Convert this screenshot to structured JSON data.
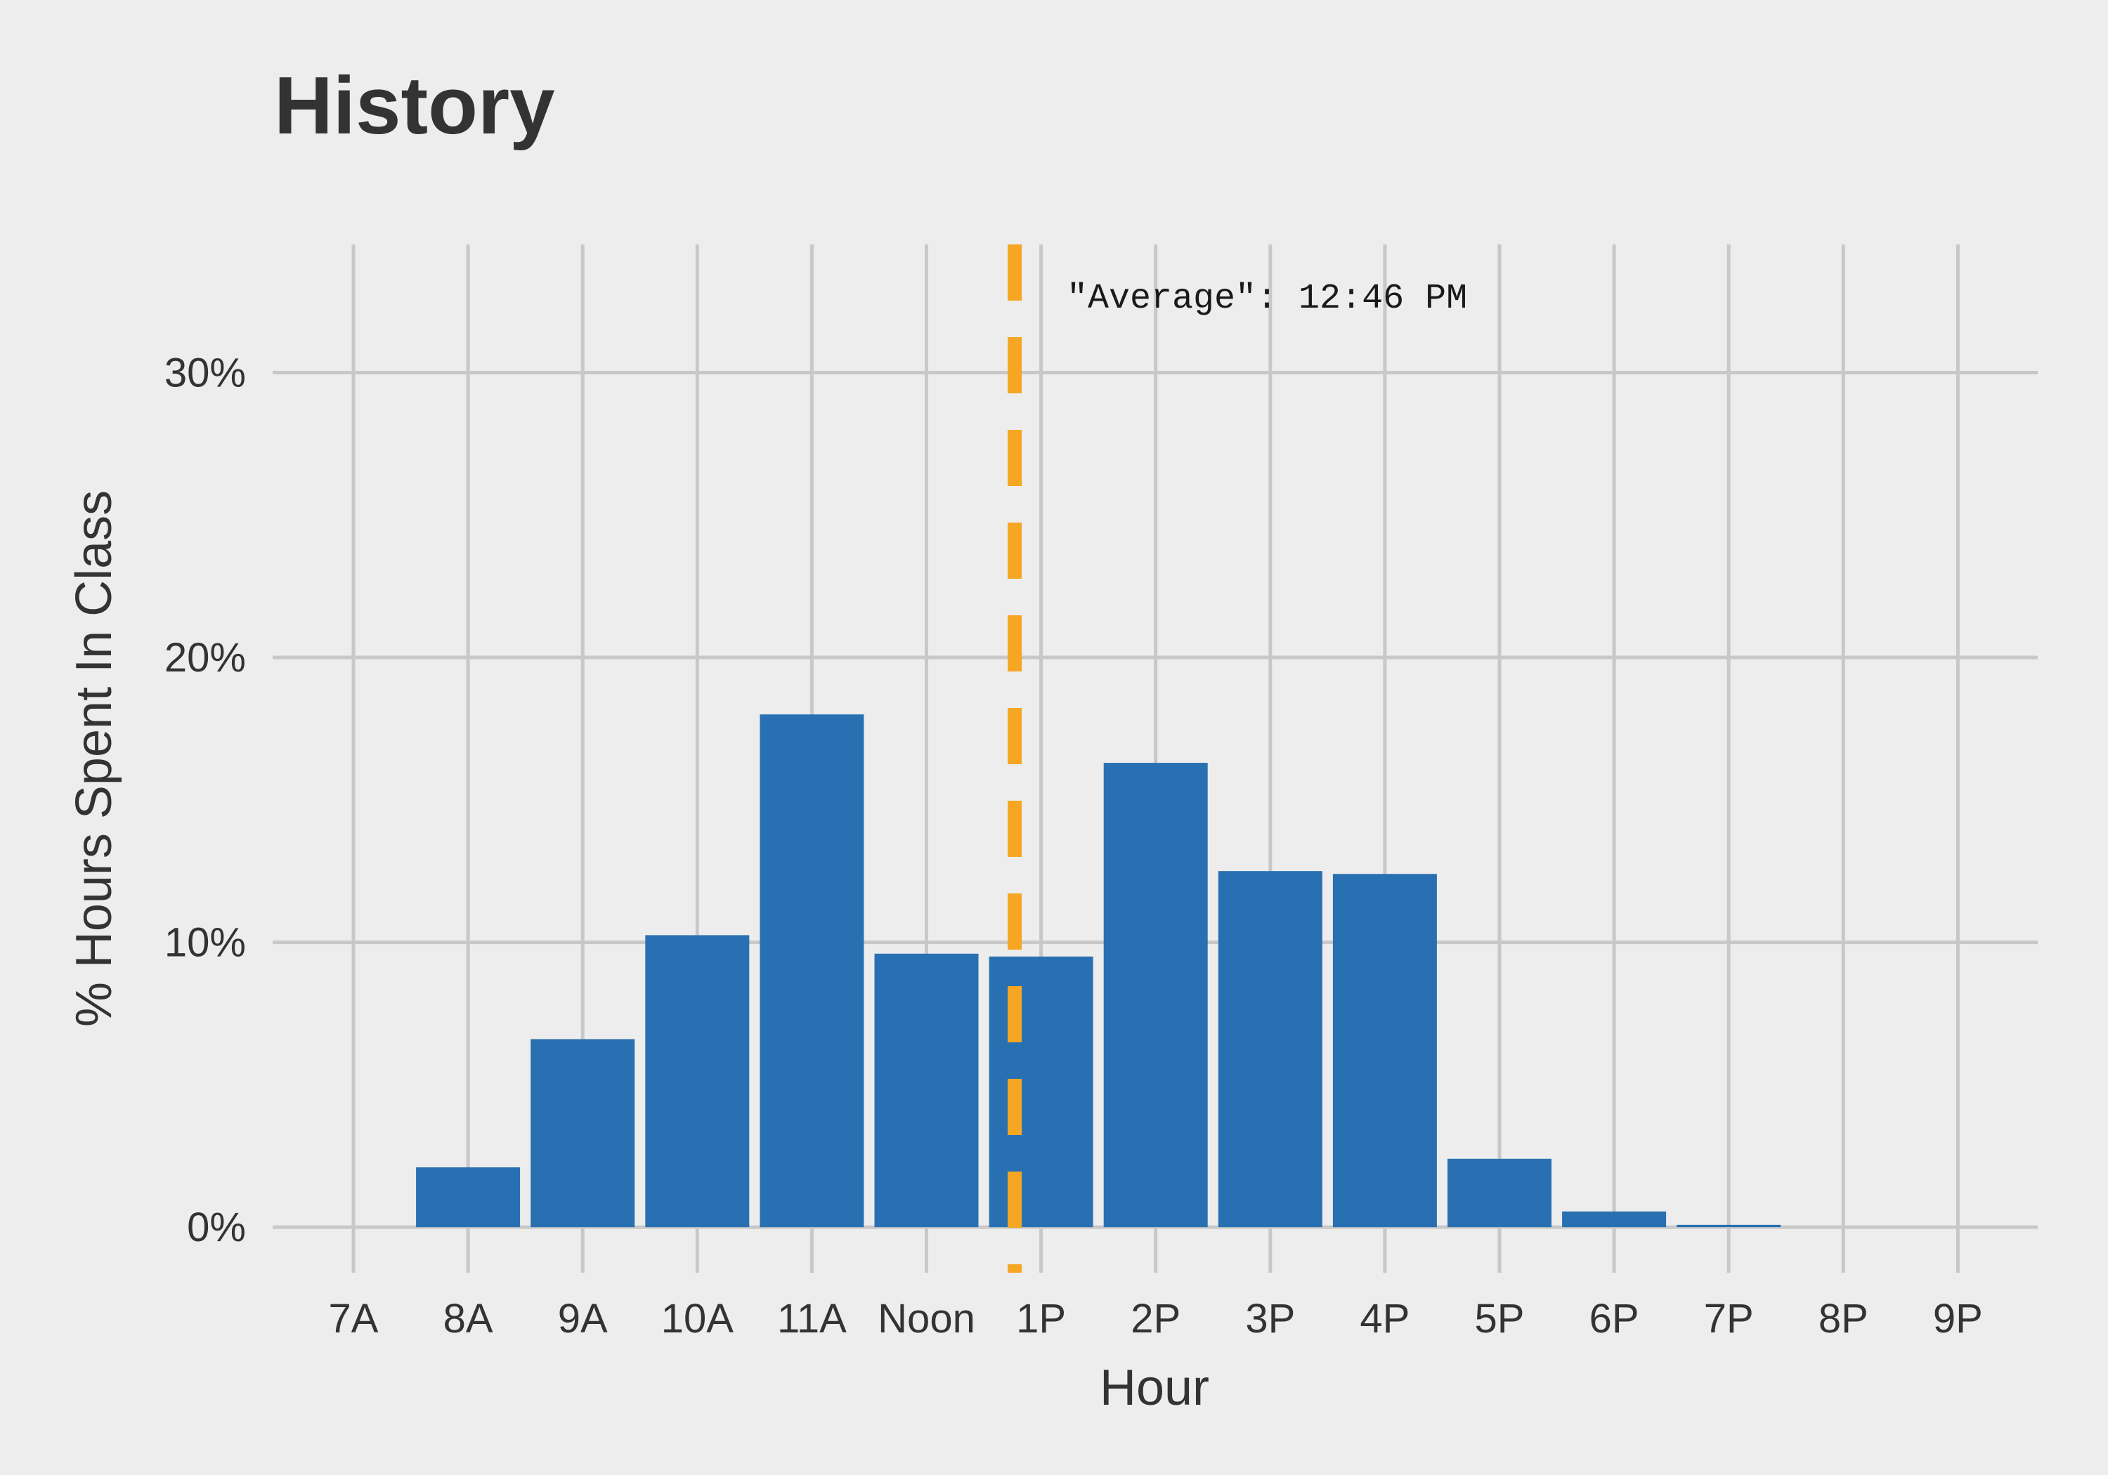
{
  "chart_data": {
    "type": "bar",
    "title": "History",
    "xlabel": "Hour",
    "ylabel": "% Hours Spent In Class",
    "categories": [
      "7A",
      "8A",
      "9A",
      "10A",
      "11A",
      "Noon",
      "1P",
      "2P",
      "3P",
      "4P",
      "5P",
      "6P",
      "7P",
      "8P",
      "9P"
    ],
    "values": [
      0,
      2.1,
      6.6,
      10.25,
      18.0,
      9.6,
      9.5,
      16.3,
      12.5,
      12.4,
      2.4,
      0.55,
      0.08,
      0,
      0
    ],
    "ylim": [
      -1.6,
      34.5
    ],
    "yticks": [
      0,
      10,
      20,
      30
    ],
    "ytick_labels": [
      "0%",
      "10%",
      "20%",
      "30%"
    ],
    "grid": true,
    "reference_line": {
      "x_hour": 12.77,
      "label": "\"Average\": 12:46 PM",
      "color": "#f5a623",
      "style": "dashed"
    },
    "colors": {
      "bar": "#2870b1",
      "background": "#ededed",
      "grid": "#c8c8c8",
      "text": "#333333"
    }
  }
}
